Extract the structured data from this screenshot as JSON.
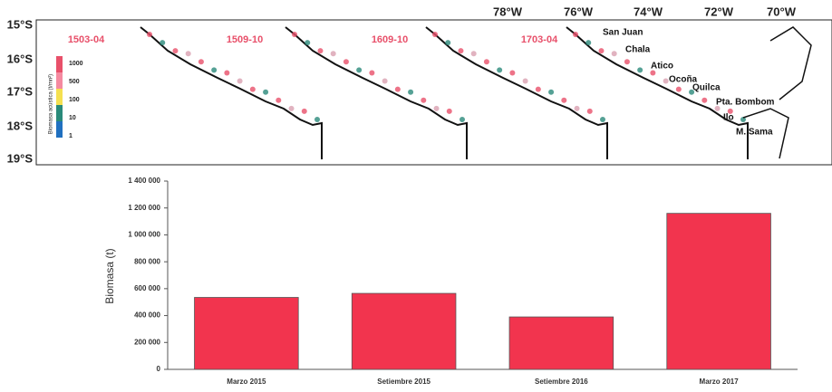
{
  "map": {
    "lat_labels": [
      "15°S",
      "16°S",
      "17°S",
      "18°S",
      "19°S"
    ],
    "lon_labels": [
      "78°W",
      "76°W",
      "74°W",
      "72°W",
      "70°W"
    ],
    "panel_titles": [
      "1503-04",
      "1509-10",
      "1609-10",
      "1703-04"
    ],
    "legend": {
      "title": "Biomasa acústica (t/mn²)",
      "labels": [
        "1000",
        "500",
        "100",
        "10",
        "1"
      ]
    },
    "places": [
      "San Juan",
      "Chala",
      "Atico",
      "Ocoña",
      "Quilca",
      "Pta. Bombom",
      "Ilo",
      "M. Sama"
    ]
  },
  "chart_data": {
    "type": "bar",
    "y_label": "Biomasa (t)",
    "categories": [
      "Marzo 2015",
      "Setiembre 2015",
      "Setiembre 2016",
      "Marzo 2017"
    ],
    "values": [
      535000,
      565000,
      390000,
      1160000
    ],
    "color": "#f2344e",
    "ylim": [
      0,
      1400000
    ],
    "yticks": [
      0,
      {
        "value": 200000,
        "label": "200 000"
      },
      {
        "value": 400000,
        "label": "400 000"
      },
      {
        "value": 600000,
        "label": "600 000"
      },
      {
        "value": 800000,
        "label": "800 000"
      },
      {
        "value": 1000000,
        "label": "1 000 000"
      },
      {
        "value": 1200000,
        "label": "1 200 000"
      },
      {
        "value": 1400000,
        "label": "1 400 000"
      }
    ]
  }
}
